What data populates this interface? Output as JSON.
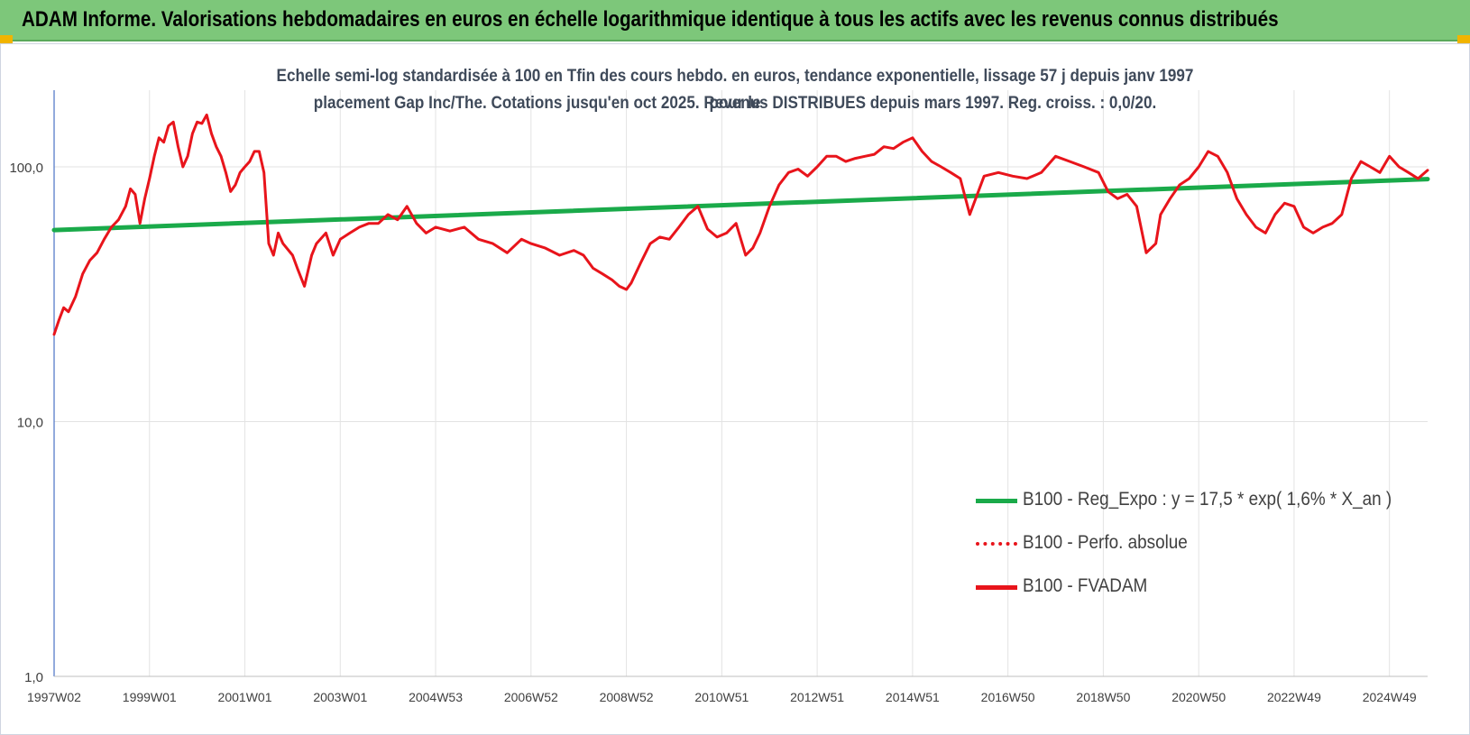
{
  "banner": {
    "title": "ADAM Informe. Valorisations hebdomadaires en euros en échelle logarithmique identique à tous les actifs avec les revenus connus distribués",
    "background_color": "#7dc77a",
    "corner_color": "#f1b400"
  },
  "chart_data": {
    "type": "line",
    "title_line1": "Echelle semi-log standardisée à 100 en Tfin des cours hebdo. en euros, tendance exponentielle, lissage 57 j depuis janv 1997 pour le",
    "title_line2": "placement Gap Inc/The. Cotations jusqu'en oct 2025. Revenus DISTRIBUES depuis mars 1997. Reg. croiss. : 0,0/20.",
    "y_scale": "log",
    "ylim": [
      1,
      200
    ],
    "y_ticks": [
      1,
      10,
      100
    ],
    "y_tick_labels": [
      "1,0",
      "10,0",
      "100,0"
    ],
    "xlim": [
      1997.0,
      2025.8
    ],
    "x_ticks": [
      1997.0,
      1999.0,
      2001.0,
      2003.0,
      2005.0,
      2007.0,
      2009.0,
      2011.0,
      2013.0,
      2015.0,
      2017.0,
      2019.0,
      2021.0,
      2023.0,
      2025.0
    ],
    "x_tick_labels": [
      "1997W02",
      "1999W01",
      "2001W01",
      "2003W01",
      "2004W53",
      "2006W52",
      "2008W52",
      "2010W51",
      "2012W51",
      "2014W51",
      "2016W50",
      "2018W50",
      "2020W50",
      "2022W49",
      "2024W49"
    ],
    "grid": {
      "vertical": true,
      "horizontal": true
    },
    "legend_position": "bottom-right",
    "series": [
      {
        "name": "B100 - Reg_Expo : y = 17,5 * exp( 1,6% *  X_an )",
        "color": "#1aaa4a",
        "style": "solid",
        "x": [
          1997.0,
          2025.8
        ],
        "y": [
          56.5,
          89.5
        ]
      },
      {
        "name": "B100 - Perfo. absolue",
        "color": "#e8141b",
        "style": "dotted",
        "x": [],
        "y": []
      },
      {
        "name": "B100 - FVADAM",
        "color": "#e8141b",
        "style": "solid",
        "x": [
          1997.0,
          1997.1,
          1997.2,
          1997.3,
          1997.45,
          1997.6,
          1997.75,
          1997.9,
          1998.05,
          1998.2,
          1998.35,
          1998.5,
          1998.6,
          1998.7,
          1998.8,
          1998.9,
          1999.0,
          1999.1,
          1999.2,
          1999.3,
          1999.4,
          1999.5,
          1999.6,
          1999.7,
          1999.8,
          1999.9,
          2000.0,
          2000.1,
          2000.2,
          2000.3,
          2000.4,
          2000.5,
          2000.6,
          2000.7,
          2000.8,
          2000.9,
          2001.0,
          2001.1,
          2001.2,
          2001.3,
          2001.4,
          2001.5,
          2001.6,
          2001.7,
          2001.8,
          2002.0,
          2002.1,
          2002.25,
          2002.4,
          2002.5,
          2002.7,
          2002.85,
          2003.0,
          2003.2,
          2003.4,
          2003.6,
          2003.8,
          2004.0,
          2004.2,
          2004.4,
          2004.6,
          2004.8,
          2005.0,
          2005.3,
          2005.6,
          2005.9,
          2006.2,
          2006.5,
          2006.8,
          2007.0,
          2007.3,
          2007.6,
          2007.9,
          2008.1,
          2008.3,
          2008.5,
          2008.7,
          2008.85,
          2009.0,
          2009.1,
          2009.3,
          2009.5,
          2009.7,
          2009.9,
          2010.1,
          2010.3,
          2010.5,
          2010.7,
          2010.9,
          2011.1,
          2011.3,
          2011.5,
          2011.65,
          2011.8,
          2012.0,
          2012.2,
          2012.4,
          2012.6,
          2012.8,
          2013.0,
          2013.2,
          2013.4,
          2013.6,
          2013.8,
          2014.0,
          2014.2,
          2014.4,
          2014.6,
          2014.8,
          2015.0,
          2015.2,
          2015.4,
          2015.6,
          2015.8,
          2016.0,
          2016.2,
          2016.5,
          2016.8,
          2017.1,
          2017.4,
          2017.7,
          2018.0,
          2018.3,
          2018.6,
          2018.9,
          2019.1,
          2019.3,
          2019.5,
          2019.7,
          2019.9,
          2020.1,
          2020.2,
          2020.4,
          2020.6,
          2020.8,
          2021.0,
          2021.2,
          2021.4,
          2021.6,
          2021.8,
          2022.0,
          2022.2,
          2022.4,
          2022.6,
          2022.8,
          2023.0,
          2023.2,
          2023.4,
          2023.6,
          2023.8,
          2024.0,
          2024.2,
          2024.4,
          2024.6,
          2024.8,
          2025.0,
          2025.2,
          2025.4,
          2025.6,
          2025.8
        ],
        "y": [
          22,
          25,
          28,
          27,
          31,
          38,
          43,
          46,
          52,
          58,
          62,
          70,
          82,
          78,
          60,
          75,
          90,
          110,
          130,
          125,
          145,
          150,
          120,
          100,
          110,
          135,
          150,
          148,
          160,
          135,
          120,
          110,
          95,
          80,
          85,
          95,
          100,
          105,
          115,
          115,
          95,
          50,
          45,
          55,
          50,
          45,
          40,
          34,
          45,
          50,
          55,
          45,
          52,
          55,
          58,
          60,
          60,
          65,
          62,
          70,
          60,
          55,
          58,
          56,
          58,
          52,
          50,
          46,
          52,
          50,
          48,
          45,
          47,
          45,
          40,
          38,
          36,
          34,
          33,
          35,
          42,
          50,
          53,
          52,
          58,
          65,
          70,
          57,
          53,
          55,
          60,
          45,
          48,
          55,
          70,
          85,
          95,
          98,
          92,
          100,
          110,
          110,
          105,
          108,
          110,
          112,
          120,
          118,
          125,
          130,
          115,
          105,
          100,
          95,
          90,
          65,
          92,
          95,
          92,
          90,
          95,
          110,
          105,
          100,
          95,
          80,
          75,
          78,
          70,
          46,
          50,
          65,
          75,
          85,
          90,
          100,
          115,
          110,
          95,
          75,
          65,
          58,
          55,
          65,
          72,
          70,
          58,
          55,
          58,
          60,
          65,
          90,
          105,
          100,
          95,
          110,
          100,
          95,
          90,
          97
        ]
      }
    ]
  }
}
